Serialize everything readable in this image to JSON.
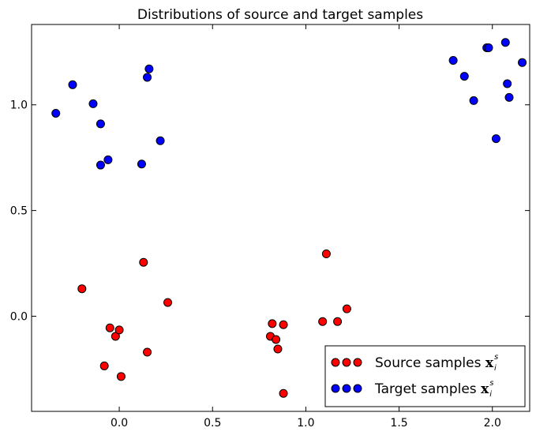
{
  "chart_data": {
    "type": "scatter",
    "title": "Distributions of source and target samples",
    "xlabel": "",
    "ylabel": "",
    "xlim": [
      -0.47,
      2.2
    ],
    "ylim": [
      -0.45,
      1.38
    ],
    "grid": false,
    "legend_position": "bottom-right",
    "x_ticks": [
      {
        "value": 0,
        "label": "0.0"
      },
      {
        "value": 0.5,
        "label": "0.5"
      },
      {
        "value": 1,
        "label": "1.0"
      },
      {
        "value": 1.5,
        "label": "1.5"
      },
      {
        "value": 2,
        "label": "2.0"
      }
    ],
    "y_ticks": [
      {
        "value": 0,
        "label": "0.0"
      },
      {
        "value": 0.5,
        "label": "0.5"
      },
      {
        "value": 1,
        "label": "1.0"
      }
    ],
    "series": [
      {
        "name": "Source samples",
        "legend_math": "x",
        "legend_sub": "i",
        "legend_sup": "s",
        "color": "#ff0000",
        "points": [
          [
            -0.2,
            0.13
          ],
          [
            -0.05,
            -0.055
          ],
          [
            -0.02,
            -0.095
          ],
          [
            0.0,
            -0.065
          ],
          [
            -0.08,
            -0.235
          ],
          [
            0.01,
            -0.285
          ],
          [
            0.13,
            0.255
          ],
          [
            0.15,
            -0.17
          ],
          [
            0.26,
            0.065
          ],
          [
            0.81,
            -0.095
          ],
          [
            0.82,
            -0.035
          ],
          [
            0.84,
            -0.11
          ],
          [
            0.85,
            -0.155
          ],
          [
            0.88,
            -0.04
          ],
          [
            0.88,
            -0.365
          ],
          [
            1.09,
            -0.025
          ],
          [
            1.11,
            0.295
          ],
          [
            1.17,
            -0.025
          ],
          [
            1.22,
            0.035
          ]
        ]
      },
      {
        "name": "Target samples",
        "legend_math": "x",
        "legend_sub": "i",
        "legend_sup": "s",
        "color": "#0000ff",
        "points": [
          [
            -0.34,
            0.96
          ],
          [
            -0.25,
            1.095
          ],
          [
            -0.14,
            1.005
          ],
          [
            -0.1,
            0.91
          ],
          [
            -0.1,
            0.715
          ],
          [
            -0.06,
            0.74
          ],
          [
            0.12,
            0.72
          ],
          [
            0.15,
            1.13
          ],
          [
            0.16,
            1.17
          ],
          [
            0.22,
            0.83
          ],
          [
            1.79,
            1.21
          ],
          [
            1.85,
            1.135
          ],
          [
            1.9,
            1.02
          ],
          [
            1.97,
            1.27
          ],
          [
            1.98,
            1.27
          ],
          [
            2.02,
            0.84
          ],
          [
            2.07,
            1.295
          ],
          [
            2.08,
            1.1
          ],
          [
            2.09,
            1.035
          ],
          [
            2.16,
            1.2
          ]
        ]
      }
    ]
  }
}
